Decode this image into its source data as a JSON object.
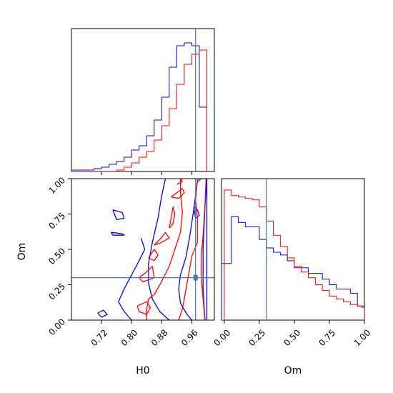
{
  "chart_data": {
    "type": "corner",
    "parameters": [
      "H0",
      "Om"
    ],
    "truths": {
      "H0": 0.97,
      "Om": 0.3
    },
    "truth_color": "#4477aa",
    "series": [
      {
        "color": "#0000ff"
      },
      {
        "color": "#ff0000"
      }
    ],
    "panels": [
      {
        "id": "h0-histogram",
        "type": "step-histogram",
        "xlim": [
          0.64,
          1.02
        ],
        "xticks": [
          0.72,
          0.8,
          0.88,
          0.96
        ],
        "bin_edges": [
          0.6,
          0.62,
          0.64,
          0.66,
          0.68,
          0.7,
          0.72,
          0.74,
          0.76,
          0.78,
          0.8,
          0.82,
          0.84,
          0.86,
          0.88,
          0.9,
          0.92,
          0.94,
          0.96,
          0.98,
          1.0
        ],
        "heights": {
          "#0000ff": [
            0,
            0,
            1,
            1,
            1,
            2,
            3,
            5,
            7,
            10,
            15,
            18,
            25,
            36,
            52,
            73,
            88,
            90,
            88,
            45,
            0
          ],
          "#ff0000": [
            0,
            0,
            0,
            0,
            0,
            0,
            0,
            0,
            1,
            3,
            6,
            10,
            14,
            22,
            32,
            44,
            61,
            75,
            82,
            85,
            0
          ]
        },
        "ylim": [
          0,
          100
        ]
      },
      {
        "id": "h0-om-contour",
        "type": "contour",
        "xlim": [
          0.64,
          1.02
        ],
        "ylim": [
          0,
          1
        ],
        "xticks": [
          0.72,
          0.8,
          0.88,
          0.96
        ],
        "xticklabels": [
          "0.72",
          "0.80",
          "0.88",
          "0.96"
        ],
        "yticks": [
          0.0,
          0.25,
          0.5,
          0.75,
          1.0
        ],
        "yticklabels": [
          "0.00",
          "0.25",
          "0.50",
          "0.75",
          "1.00"
        ],
        "xlabel": "H0",
        "ylabel": "Om",
        "contours": [
          {
            "color": "#0000ff",
            "points": [
              [
                0.96,
                0.0
              ],
              [
                0.945,
                0.05
              ],
              [
                0.93,
                0.12
              ],
              [
                0.925,
                0.22
              ],
              [
                0.93,
                0.32
              ],
              [
                0.945,
                0.45
              ],
              [
                0.955,
                0.6
              ],
              [
                0.965,
                0.78
              ],
              [
                0.975,
                0.98
              ],
              [
                0.985,
                1.0
              ],
              [
                1.0,
                1.0
              ],
              [
                1.0,
                0.0
              ]
            ]
          },
          {
            "color": "#0000ff",
            "points": [
              [
                0.9,
                0.0
              ],
              [
                0.875,
                0.06
              ],
              [
                0.855,
                0.15
              ],
              [
                0.845,
                0.26
              ],
              [
                0.845,
                0.4
              ],
              [
                0.855,
                0.55
              ],
              [
                0.87,
                0.72
              ],
              [
                0.88,
                0.88
              ],
              [
                0.89,
                1.0
              ]
            ]
          },
          {
            "color": "#0000ff",
            "points": [
              [
                0.8,
                0.0
              ],
              [
                0.78,
                0.06
              ],
              [
                0.765,
                0.13
              ],
              [
                0.78,
                0.22
              ],
              [
                0.8,
                0.32
              ],
              [
                0.82,
                0.42
              ],
              [
                0.835,
                0.5
              ],
              [
                0.825,
                0.58
              ]
            ]
          },
          {
            "color": "#0000ff",
            "points": [
              [
                0.71,
                0.05
              ],
              [
                0.725,
                0.07
              ],
              [
                0.735,
                0.04
              ],
              [
                0.72,
                0.02
              ],
              [
                0.71,
                0.05
              ]
            ]
          },
          {
            "color": "#0000ff",
            "points": [
              [
                0.75,
                0.78
              ],
              [
                0.775,
                0.76
              ],
              [
                0.78,
                0.72
              ],
              [
                0.76,
                0.71
              ],
              [
                0.75,
                0.78
              ]
            ]
          },
          {
            "color": "#0000ff",
            "points": [
              [
                0.745,
                0.62
              ],
              [
                0.775,
                0.61
              ],
              [
                0.78,
                0.6
              ],
              [
                0.75,
                0.6
              ],
              [
                0.745,
                0.62
              ]
            ]
          },
          {
            "color": "#0000ff",
            "points": [
              [
                0.995,
                0.0
              ],
              [
                0.99,
                0.22
              ],
              [
                0.99,
                0.5
              ],
              [
                0.995,
                0.8
              ],
              [
                1.0,
                1.0
              ]
            ]
          },
          {
            "color": "#0000ff",
            "points": [
              [
                0.965,
                0.8
              ],
              [
                0.975,
                0.78
              ],
              [
                0.98,
                0.74
              ],
              [
                0.97,
                0.72
              ],
              [
                0.965,
                0.8
              ]
            ]
          },
          {
            "color": "#ff0000",
            "points": [
              [
                0.995,
                0.0
              ],
              [
                0.99,
                0.15
              ],
              [
                0.985,
                0.3
              ],
              [
                0.985,
                0.45
              ],
              [
                0.99,
                0.6
              ],
              [
                0.995,
                0.8
              ],
              [
                0.998,
                1.0
              ]
            ]
          },
          {
            "color": "#ff0000",
            "points": [
              [
                0.925,
                0.0
              ],
              [
                0.935,
                0.08
              ],
              [
                0.94,
                0.15
              ],
              [
                0.95,
                0.3
              ],
              [
                0.96,
                0.45
              ],
              [
                0.975,
                0.55
              ],
              [
                0.975,
                0.72
              ],
              [
                0.97,
                0.85
              ],
              [
                0.975,
                1.0
              ]
            ]
          },
          {
            "color": "#ff0000",
            "points": [
              [
                0.84,
                0.0
              ],
              [
                0.84,
                0.08
              ],
              [
                0.845,
                0.15
              ],
              [
                0.86,
                0.18
              ],
              [
                0.875,
                0.25
              ],
              [
                0.885,
                0.3
              ],
              [
                0.9,
                0.38
              ],
              [
                0.915,
                0.5
              ],
              [
                0.93,
                0.62
              ],
              [
                0.935,
                0.76
              ],
              [
                0.93,
                0.9
              ],
              [
                0.93,
                1.0
              ]
            ]
          },
          {
            "color": "#ff0000",
            "points": [
              [
                0.815,
                0.1
              ],
              [
                0.82,
                0.06
              ],
              [
                0.84,
                0.04
              ],
              [
                0.85,
                0.09
              ],
              [
                0.84,
                0.13
              ],
              [
                0.815,
                0.1
              ]
            ]
          },
          {
            "color": "#ff0000",
            "points": [
              [
                0.82,
                0.3
              ],
              [
                0.835,
                0.33
              ],
              [
                0.855,
                0.38
              ],
              [
                0.86,
                0.3
              ],
              [
                0.83,
                0.27
              ],
              [
                0.82,
                0.3
              ]
            ]
          },
          {
            "color": "#ff0000",
            "points": [
              [
                0.86,
                0.53
              ],
              [
                0.875,
                0.57
              ],
              [
                0.89,
                0.62
              ],
              [
                0.9,
                0.58
              ],
              [
                0.88,
                0.55
              ],
              [
                0.86,
                0.53
              ]
            ]
          },
          {
            "color": "#ff0000",
            "points": [
              [
                0.9,
                0.65
              ],
              [
                0.905,
                0.72
              ],
              [
                0.91,
                0.8
              ],
              [
                0.915,
                0.75
              ],
              [
                0.91,
                0.68
              ],
              [
                0.9,
                0.65
              ]
            ]
          },
          {
            "color": "#ff0000",
            "points": [
              [
                0.905,
                0.87
              ],
              [
                0.92,
                0.9
              ],
              [
                0.935,
                0.93
              ],
              [
                0.94,
                0.9
              ],
              [
                0.925,
                0.86
              ],
              [
                0.905,
                0.87
              ]
            ]
          },
          {
            "color": "#ff0000",
            "points": [
              [
                0.92,
                0.96
              ],
              [
                0.935,
                0.98
              ],
              [
                0.93,
                1.0
              ]
            ]
          },
          {
            "color": "#ff0000",
            "points": [
              [
                0.845,
                0.44
              ],
              [
                0.86,
                0.5
              ],
              [
                0.87,
                0.46
              ],
              [
                0.86,
                0.42
              ],
              [
                0.845,
                0.44
              ]
            ]
          }
        ]
      },
      {
        "id": "om-histogram",
        "type": "step-histogram",
        "xlim": [
          -0.02,
          1.0
        ],
        "xticks": [
          0.0,
          0.25,
          0.5,
          0.75,
          1.0
        ],
        "xticklabels": [
          "0.00",
          "0.25",
          "0.50",
          "0.75",
          "1.00"
        ],
        "xlabel": "Om",
        "bin_edges": [
          -0.02,
          0.0,
          0.05,
          0.1,
          0.15,
          0.2,
          0.25,
          0.3,
          0.35,
          0.4,
          0.45,
          0.5,
          0.55,
          0.6,
          0.65,
          0.7,
          0.75,
          0.8,
          0.85,
          0.9,
          0.95,
          0.98,
          1.0
        ],
        "heights": {
          "#0000ff": [
            40,
            40,
            73,
            69,
            66,
            66,
            57,
            51,
            48,
            46,
            42,
            37,
            37,
            33,
            33,
            29,
            25,
            22,
            22,
            19,
            10,
            10
          ],
          "#ff0000": [
            0,
            92,
            88,
            87,
            86,
            85,
            80,
            70,
            60,
            52,
            44,
            38,
            34,
            30,
            25,
            21,
            17,
            15,
            13,
            11,
            10,
            9
          ]
        },
        "ylim": [
          0,
          100
        ]
      }
    ]
  }
}
